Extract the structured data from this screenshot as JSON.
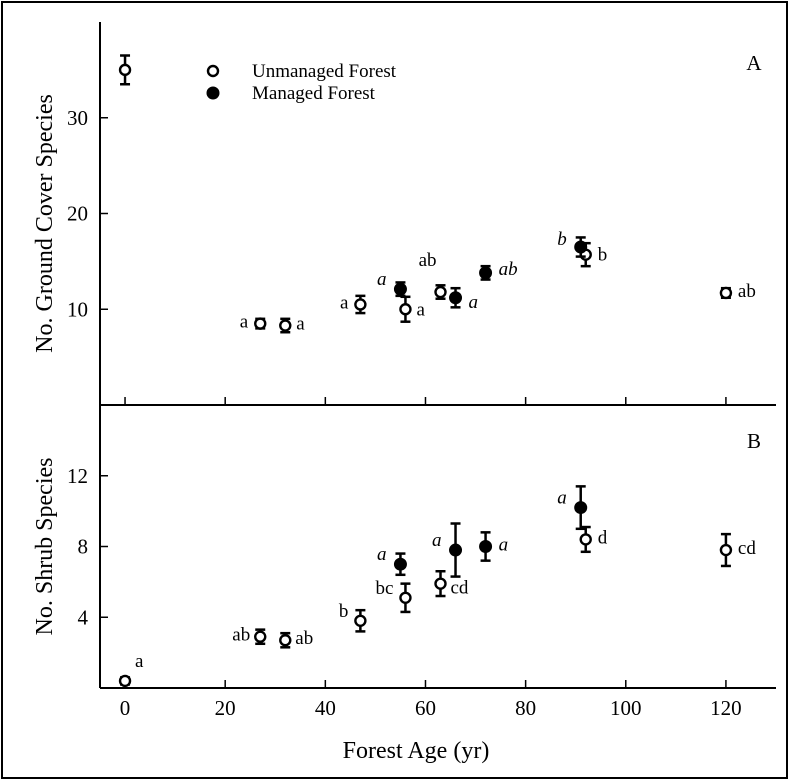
{
  "chart_data": [
    {
      "panel": "A",
      "type": "scatter",
      "ylabel": "No. Ground Cover Species",
      "ylim": [
        0,
        40
      ],
      "yticks": [
        10,
        20,
        30
      ],
      "xlim": [
        -5,
        130
      ],
      "legend": {
        "placement": "top-left",
        "entries": [
          {
            "name": "Unmanaged Forest",
            "marker": "open-circle"
          },
          {
            "name": "Managed Forest",
            "marker": "filled-circle"
          }
        ]
      },
      "series": [
        {
          "name": "Unmanaged Forest",
          "points": [
            {
              "x": 0,
              "y": 35.0,
              "err": 1.5,
              "label": ""
            },
            {
              "x": 27,
              "y": 8.5,
              "err": 0.5,
              "label": "a"
            },
            {
              "x": 32,
              "y": 8.3,
              "err": 0.7,
              "label": "a"
            },
            {
              "x": 47,
              "y": 10.5,
              "err": 0.9,
              "label": "a"
            },
            {
              "x": 56,
              "y": 10.0,
              "err": 1.3,
              "label": "a"
            },
            {
              "x": 63,
              "y": 11.8,
              "err": 0.7,
              "label": "ab"
            },
            {
              "x": 92,
              "y": 15.7,
              "err": 1.2,
              "label": "b"
            },
            {
              "x": 120,
              "y": 11.7,
              "err": 0.5,
              "label": "ab"
            }
          ]
        },
        {
          "name": "Managed Forest",
          "points": [
            {
              "x": 55,
              "y": 12.1,
              "err": 0.7,
              "label": "a"
            },
            {
              "x": 66,
              "y": 11.2,
              "err": 1.0,
              "label": "a"
            },
            {
              "x": 72,
              "y": 13.8,
              "err": 0.7,
              "label": "ab"
            },
            {
              "x": 91,
              "y": 16.5,
              "err": 1.0,
              "label": "b"
            }
          ]
        }
      ]
    },
    {
      "panel": "B",
      "type": "scatter",
      "ylabel": "No. Shrub Species",
      "xlabel": "Forest Age (yr)",
      "ylim": [
        0,
        16
      ],
      "yticks": [
        4,
        8,
        12
      ],
      "xlim": [
        -5,
        130
      ],
      "xticks": [
        0,
        20,
        40,
        60,
        80,
        100,
        120
      ],
      "series": [
        {
          "name": "Unmanaged Forest",
          "points": [
            {
              "x": 0,
              "y": 0.4,
              "err": 0.2,
              "label": "a"
            },
            {
              "x": 27,
              "y": 2.9,
              "err": 0.4,
              "label": "ab"
            },
            {
              "x": 32,
              "y": 2.7,
              "err": 0.4,
              "label": "ab"
            },
            {
              "x": 47,
              "y": 3.8,
              "err": 0.6,
              "label": "b"
            },
            {
              "x": 56,
              "y": 5.1,
              "err": 0.8,
              "label": "bc"
            },
            {
              "x": 63,
              "y": 5.9,
              "err": 0.7,
              "label": "cd"
            },
            {
              "x": 92,
              "y": 8.4,
              "err": 0.7,
              "label": "d"
            },
            {
              "x": 120,
              "y": 7.8,
              "err": 0.9,
              "label": "cd"
            }
          ]
        },
        {
          "name": "Managed Forest",
          "points": [
            {
              "x": 55,
              "y": 7.0,
              "err": 0.6,
              "label": "a"
            },
            {
              "x": 66,
              "y": 7.8,
              "err": 1.5,
              "label": "a"
            },
            {
              "x": 72,
              "y": 8.0,
              "err": 0.8,
              "label": "a"
            },
            {
              "x": 91,
              "y": 10.2,
              "err": 1.2,
              "label": "a"
            }
          ]
        }
      ]
    }
  ]
}
